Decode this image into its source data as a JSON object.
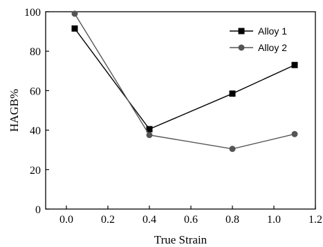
{
  "chart_data": {
    "type": "line",
    "xlabel": "True Strain",
    "ylabel": "HAGB%",
    "xlim": [
      -0.1,
      1.2
    ],
    "ylim": [
      0,
      100
    ],
    "xticks": [
      0.0,
      0.2,
      0.4,
      0.6,
      0.8,
      1.0,
      1.2
    ],
    "xtick_labels": [
      "0.0",
      "0.2",
      "0.4",
      "0.6",
      "0.8",
      "1.0",
      "1.2"
    ],
    "yticks": [
      0,
      20,
      40,
      60,
      80,
      100
    ],
    "ytick_labels": [
      "0",
      "20",
      "40",
      "60",
      "80",
      "100"
    ],
    "grid": false,
    "legend_position": "top-right",
    "series": [
      {
        "name": "Alloy 1",
        "marker": "square",
        "color": "#000000",
        "x": [
          0.04,
          0.4,
          0.8,
          1.1
        ],
        "y": [
          91.5,
          40.5,
          58.5,
          73
        ]
      },
      {
        "name": "Alloy 2",
        "marker": "circle",
        "color": "#555555",
        "x": [
          0.04,
          0.4,
          0.8,
          1.1
        ],
        "y": [
          99,
          37.5,
          30.5,
          38
        ]
      }
    ]
  }
}
